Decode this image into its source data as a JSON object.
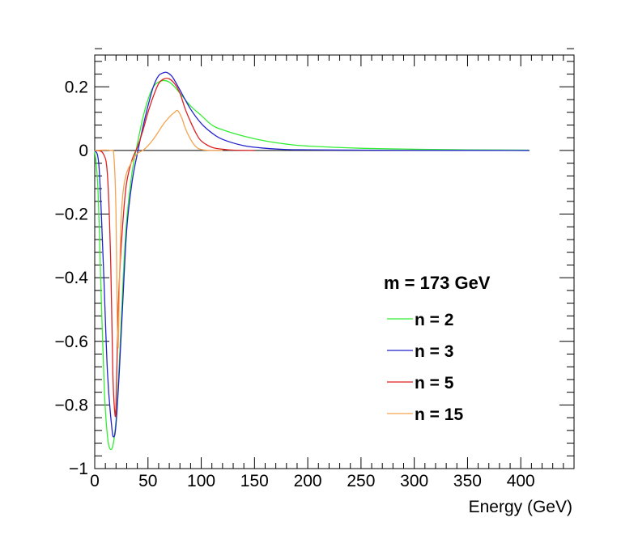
{
  "chart_data": {
    "type": "line",
    "title": "",
    "xlabel": "Energy (GeV)",
    "ylabel": "",
    "xlim": [
      0,
      450
    ],
    "ylim": [
      -1,
      0.3
    ],
    "x_ticks": [
      0,
      50,
      100,
      150,
      200,
      250,
      300,
      350,
      400
    ],
    "x_tick_labels": [
      "0",
      "50",
      "100",
      "150",
      "200",
      "250",
      "300",
      "350",
      "400"
    ],
    "y_ticks": [
      -1,
      -0.8,
      -0.6,
      -0.4,
      -0.2,
      0,
      0.2
    ],
    "y_tick_labels": [
      "−1",
      "−0.8",
      "−0.6",
      "−0.4",
      "−0.2",
      "0",
      "0.2"
    ],
    "grid": false,
    "legend": {
      "title": "m = 173 GeV",
      "placement": "center-right"
    },
    "reference_line": {
      "y": 0,
      "color": "#000000"
    },
    "series": [
      {
        "name": "n = 2",
        "color": "#33ee33",
        "x": [
          0,
          3,
          6,
          9,
          12,
          15,
          18,
          21,
          24,
          27,
          30,
          35,
          40,
          45,
          50,
          55,
          60,
          65,
          70,
          75,
          80,
          90,
          100,
          110,
          120,
          140,
          160,
          180,
          200,
          250,
          300,
          350,
          408
        ],
        "y": [
          0,
          -0.12,
          -0.45,
          -0.75,
          -0.9,
          -0.94,
          -0.91,
          -0.8,
          -0.6,
          -0.38,
          -0.22,
          -0.07,
          0.02,
          0.1,
          0.16,
          0.2,
          0.215,
          0.22,
          0.215,
          0.2,
          0.18,
          0.14,
          0.11,
          0.08,
          0.065,
          0.045,
          0.03,
          0.02,
          0.014,
          0.007,
          0.004,
          0.002,
          0.001
        ]
      },
      {
        "name": "n = 3",
        "color": "#2222cc",
        "x": [
          0,
          4,
          8,
          12,
          16,
          18,
          20,
          23,
          26,
          30,
          35,
          40,
          45,
          50,
          55,
          60,
          65,
          68,
          72,
          75,
          80,
          90,
          100,
          110,
          120,
          140,
          160,
          180,
          200,
          250,
          300,
          408
        ],
        "y": [
          0,
          -0.05,
          -0.35,
          -0.7,
          -0.87,
          -0.9,
          -0.86,
          -0.7,
          -0.5,
          -0.25,
          -0.1,
          -0.01,
          0.07,
          0.14,
          0.2,
          0.235,
          0.245,
          0.245,
          0.235,
          0.22,
          0.19,
          0.13,
          0.085,
          0.055,
          0.035,
          0.015,
          0.007,
          0.003,
          0.002,
          0.001,
          0.0005,
          0
        ]
      },
      {
        "name": "n = 5",
        "color": "#dd2222",
        "x": [
          0,
          8,
          12,
          15,
          17,
          19,
          20,
          21,
          22,
          24,
          27,
          30,
          35,
          40,
          45,
          50,
          55,
          60,
          65,
          70,
          75,
          80,
          85,
          90,
          95,
          100,
          110,
          120,
          130,
          150
        ],
        "y": [
          0,
          -0.01,
          -0.08,
          -0.35,
          -0.7,
          -0.83,
          -0.8,
          -0.65,
          -0.5,
          -0.35,
          -0.2,
          -0.1,
          -0.03,
          0.01,
          0.06,
          0.12,
          0.17,
          0.21,
          0.225,
          0.225,
          0.21,
          0.18,
          0.13,
          0.09,
          0.055,
          0.03,
          0.01,
          0.004,
          0.001,
          0
        ]
      },
      {
        "name": "n = 15",
        "color": "#f4a450",
        "x": [
          0,
          15,
          18,
          20,
          21,
          22,
          23,
          24,
          25,
          27,
          30,
          35,
          40,
          45,
          50,
          55,
          60,
          65,
          70,
          75,
          78,
          82,
          85,
          90,
          95,
          100,
          110,
          120
        ],
        "y": [
          0,
          0,
          -0.02,
          -0.2,
          -0.5,
          -0.62,
          -0.45,
          -0.3,
          -0.2,
          -0.12,
          -0.07,
          -0.035,
          -0.01,
          0,
          0.015,
          0.035,
          0.06,
          0.085,
          0.105,
          0.12,
          0.125,
          0.1,
          0.07,
          0.035,
          0.012,
          0.003,
          0,
          0
        ]
      }
    ]
  }
}
